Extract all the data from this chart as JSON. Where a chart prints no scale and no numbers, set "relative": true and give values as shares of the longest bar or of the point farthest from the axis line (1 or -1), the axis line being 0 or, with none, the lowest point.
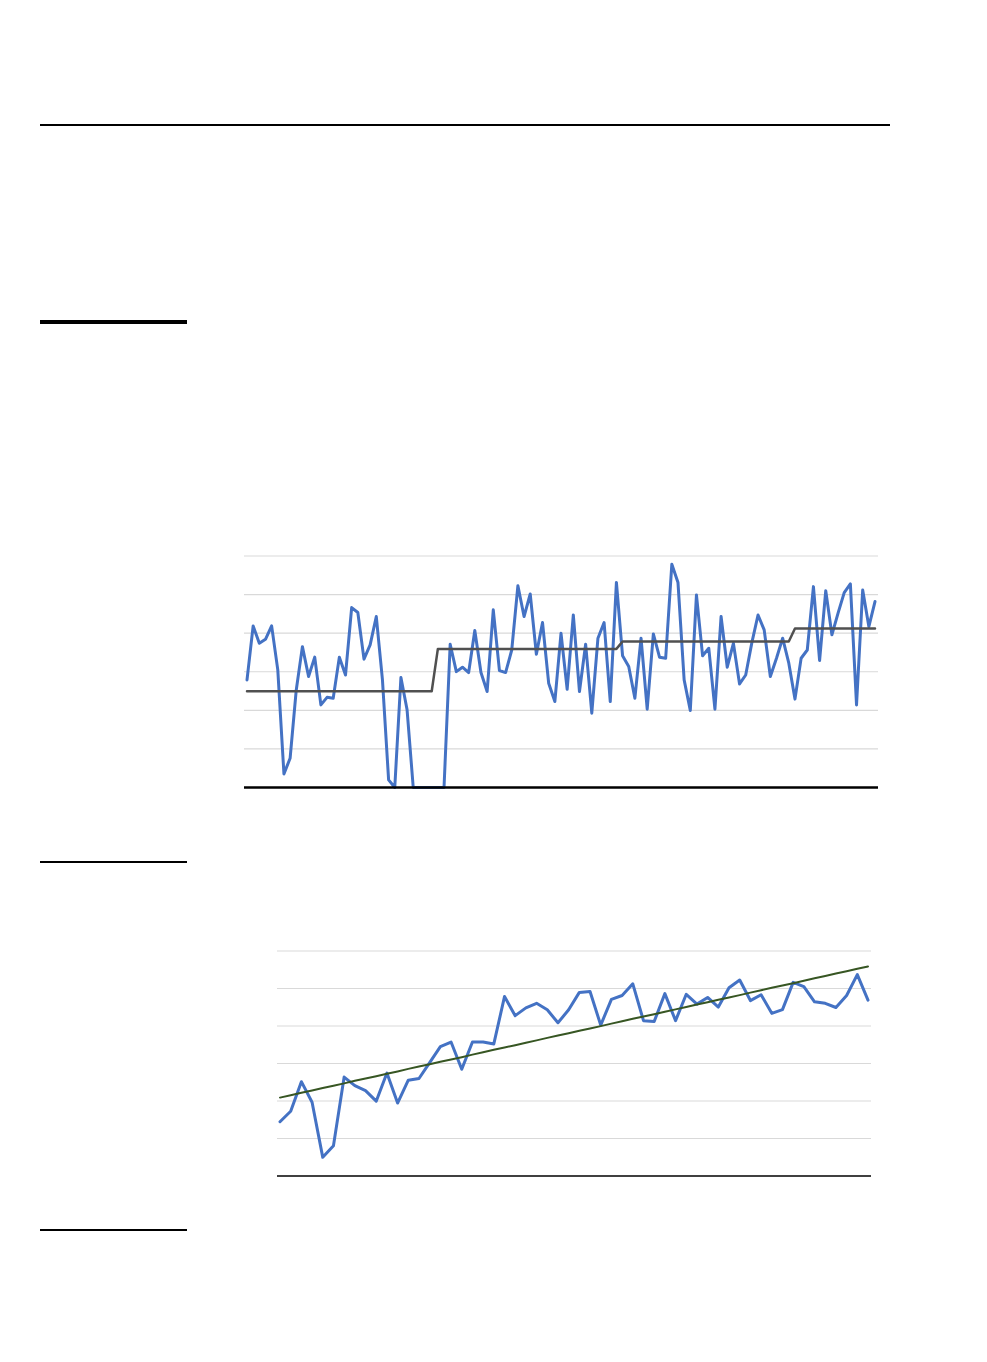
{
  "chart_data": [
    {
      "type": "line",
      "relative": true,
      "grid": "y",
      "marker": "none",
      "line_style": "solid",
      "categories": [
        null,
        null,
        null,
        null,
        null,
        null,
        null,
        null,
        null,
        null,
        null,
        null,
        null,
        null,
        null,
        null,
        null,
        null,
        null,
        null,
        null,
        null,
        null,
        null,
        null,
        null,
        null,
        null,
        null,
        null,
        null,
        null,
        null,
        null,
        null,
        null,
        null,
        null,
        null,
        null,
        null,
        null,
        null,
        null,
        null,
        null,
        null,
        null,
        null,
        null,
        null,
        null,
        null,
        null,
        null,
        null,
        null,
        null,
        null,
        null,
        null,
        null,
        null,
        null,
        null,
        null,
        null,
        null,
        null,
        null,
        null,
        null,
        null,
        null,
        null,
        null,
        null,
        null,
        null,
        null,
        null,
        null,
        null,
        null,
        null,
        null,
        null,
        null,
        null,
        null,
        null,
        null,
        null,
        null,
        null,
        null,
        null,
        null,
        null,
        null,
        null,
        null,
        null
      ],
      "series": [
        {
          "color": "#4472c4",
          "values": [
            0.482,
            0.724,
            0.646,
            0.664,
            0.724,
            0.527,
            0.061,
            0.131,
            0.437,
            0.631,
            0.497,
            0.584,
            0.37,
            0.404,
            0.4,
            0.584,
            0.504,
            0.806,
            0.784,
            0.575,
            0.639,
            0.766,
            0.482,
            0.034,
            0,
            0.493,
            0.348,
            0,
            0,
            0,
            0,
            0,
            0,
            0.642,
            0.519,
            0.539,
            0.515,
            0.703,
            0.515,
            0.43,
            0.796,
            0.524,
            0.515,
            0.616,
            0.904,
            0.766,
            0.867,
            0.597,
            0.739,
            0.467,
            0.385,
            0.691,
            0.44,
            0.773,
            0.43,
            0.642,
            0.333,
            0.669,
            0.739,
            0.385,
            0.919,
            0.59,
            0.542,
            0.4,
            0.669,
            0.351,
            0.688,
            0.584,
            0.579,
            1,
            0.918,
            0.482,
            0.345,
            0.863,
            0.59,
            0.624,
            0.351,
            0.766,
            0.539,
            0.646,
            0.464,
            0.504,
            0.649,
            0.773,
            0.706,
            0.497,
            0.579,
            0.669,
            0.557,
            0.396,
            0.579,
            0.616,
            0.9,
            0.569,
            0.882,
            0.684,
            0.781,
            0.873,
            0.912,
            0.37,
            0.885,
            0.721,
            0.833
          ]
        },
        {
          "color": "#505050",
          "values": [
            0.431,
            0.431,
            0.431,
            0.431,
            0.431,
            0.431,
            0.431,
            0.431,
            0.431,
            0.431,
            0.431,
            0.431,
            0.431,
            0.431,
            0.431,
            0.431,
            0.431,
            0.431,
            0.431,
            0.431,
            0.431,
            0.431,
            0.431,
            0.431,
            0.431,
            0.431,
            0.431,
            0.431,
            0.431,
            0.431,
            0.431,
            0.621,
            0.621,
            0.621,
            0.621,
            0.621,
            0.621,
            0.621,
            0.621,
            0.621,
            0.621,
            0.621,
            0.621,
            0.621,
            0.621,
            0.621,
            0.621,
            0.621,
            0.621,
            0.621,
            0.621,
            0.621,
            0.621,
            0.621,
            0.621,
            0.621,
            0.621,
            0.621,
            0.621,
            0.621,
            0.621,
            0.654,
            0.654,
            0.654,
            0.654,
            0.654,
            0.654,
            0.654,
            0.654,
            0.654,
            0.654,
            0.654,
            0.654,
            0.654,
            0.654,
            0.654,
            0.654,
            0.654,
            0.654,
            0.654,
            0.654,
            0.654,
            0.654,
            0.654,
            0.654,
            0.654,
            0.654,
            0.654,
            0.654,
            0.712,
            0.712,
            0.712,
            0.712,
            0.712,
            0.712,
            0.712,
            0.712,
            0.712,
            0.712,
            0.712,
            0.712,
            0.712,
            0.712
          ]
        }
      ]
    },
    {
      "type": "line",
      "relative": true,
      "grid": "y",
      "marker": "none",
      "line_style": "solid",
      "categories": [
        null,
        null,
        null,
        null,
        null,
        null,
        null,
        null,
        null,
        null,
        null,
        null,
        null,
        null,
        null,
        null,
        null,
        null,
        null,
        null,
        null,
        null,
        null,
        null,
        null,
        null,
        null,
        null,
        null,
        null,
        null,
        null,
        null,
        null,
        null,
        null,
        null,
        null,
        null,
        null,
        null,
        null,
        null,
        null,
        null,
        null,
        null,
        null,
        null,
        null,
        null,
        null,
        null,
        null,
        null,
        null
      ],
      "series": [
        {
          "color": "#4472c4",
          "values": [
            0.259,
            0.309,
            0.45,
            0.352,
            0.089,
            0.144,
            0.472,
            0.431,
            0.407,
            0.357,
            0.491,
            0.348,
            0.457,
            0.465,
            0.541,
            0.617,
            0.639,
            0.509,
            0.639,
            0.639,
            0.63,
            0.856,
            0.765,
            0.802,
            0.824,
            0.793,
            0.731,
            0.793,
            0.876,
            0.88,
            0.72,
            0.843,
            0.861,
            0.917,
            0.741,
            0.737,
            0.87,
            0.741,
            0.867,
            0.82,
            0.852,
            0.806,
            0.898,
            0.935,
            0.837,
            0.865,
            0.776,
            0.794,
            0.924,
            0.904,
            0.831,
            0.824,
            0.804,
            0.861,
            0.961,
            0.839
          ]
        },
        {
          "color": "#375623",
          "values": [
            0.374,
            0.385,
            0.397,
            0.408,
            0.42,
            0.431,
            0.442,
            0.454,
            0.465,
            0.476,
            0.488,
            0.499,
            0.511,
            0.522,
            0.533,
            0.545,
            0.556,
            0.567,
            0.579,
            0.59,
            0.602,
            0.613,
            0.624,
            0.636,
            0.647,
            0.659,
            0.67,
            0.681,
            0.693,
            0.704,
            0.715,
            0.727,
            0.738,
            0.75,
            0.761,
            0.772,
            0.784,
            0.795,
            0.806,
            0.818,
            0.829,
            0.841,
            0.852,
            0.863,
            0.875,
            0.886,
            0.898,
            0.909,
            0.92,
            0.932,
            0.943,
            0.954,
            0.966,
            0.977,
            0.989,
            1
          ]
        }
      ]
    }
  ]
}
